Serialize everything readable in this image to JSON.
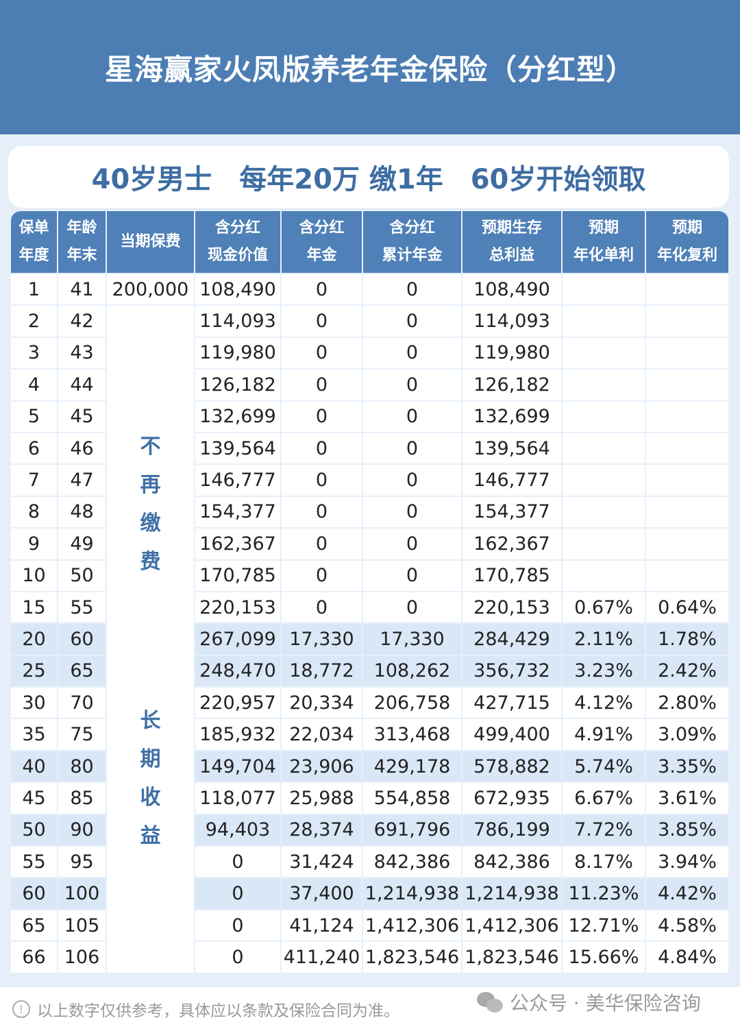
{
  "title": "星海赢家火凤版养老年金保险（分红型）",
  "subtitle": [
    "40岁男士",
    "每年20万 缴1年",
    "60岁开始领取"
  ],
  "headers": [
    [
      "保单",
      "年度"
    ],
    [
      "年龄",
      "年末"
    ],
    [
      "当期保费"
    ],
    [
      "含分红",
      "现金价值"
    ],
    [
      "含分红",
      "年金"
    ],
    [
      "含分红",
      "累计年金"
    ],
    [
      "预期生存",
      "总利益"
    ],
    [
      "预期",
      "年化单利"
    ],
    [
      "预期",
      "年化复利"
    ]
  ],
  "premium_first": "200,000",
  "premium_note_1": "不再缴费",
  "premium_note_2": "长期收益",
  "rows": [
    [
      "1",
      "41",
      "108,490",
      "0",
      "0",
      "108,490",
      "",
      ""
    ],
    [
      "2",
      "42",
      "114,093",
      "0",
      "0",
      "114,093",
      "",
      ""
    ],
    [
      "3",
      "43",
      "119,980",
      "0",
      "0",
      "119,980",
      "",
      ""
    ],
    [
      "4",
      "44",
      "126,182",
      "0",
      "0",
      "126,182",
      "",
      ""
    ],
    [
      "5",
      "45",
      "132,699",
      "0",
      "0",
      "132,699",
      "",
      ""
    ],
    [
      "6",
      "46",
      "139,564",
      "0",
      "0",
      "139,564",
      "",
      ""
    ],
    [
      "7",
      "47",
      "146,777",
      "0",
      "0",
      "146,777",
      "",
      ""
    ],
    [
      "8",
      "48",
      "154,377",
      "0",
      "0",
      "154,377",
      "",
      ""
    ],
    [
      "9",
      "49",
      "162,367",
      "0",
      "0",
      "162,367",
      "",
      ""
    ],
    [
      "10",
      "50",
      "170,785",
      "0",
      "0",
      "170,785",
      "",
      ""
    ],
    [
      "15",
      "55",
      "220,153",
      "0",
      "0",
      "220,153",
      "0.67%",
      "0.64%"
    ],
    [
      "20",
      "60",
      "267,099",
      "17,330",
      "17,330",
      "284,429",
      "2.11%",
      "1.78%"
    ],
    [
      "25",
      "65",
      "248,470",
      "18,772",
      "108,262",
      "356,732",
      "3.23%",
      "2.42%"
    ],
    [
      "30",
      "70",
      "220,957",
      "20,334",
      "206,758",
      "427,715",
      "4.12%",
      "2.80%"
    ],
    [
      "35",
      "75",
      "185,932",
      "22,034",
      "313,468",
      "499,400",
      "4.91%",
      "3.09%"
    ],
    [
      "40",
      "80",
      "149,704",
      "23,906",
      "429,178",
      "578,882",
      "5.74%",
      "3.35%"
    ],
    [
      "45",
      "85",
      "118,077",
      "25,988",
      "554,858",
      "672,935",
      "6.67%",
      "3.61%"
    ],
    [
      "50",
      "90",
      "94,403",
      "28,374",
      "691,796",
      "786,199",
      "7.72%",
      "3.85%"
    ],
    [
      "55",
      "95",
      "0",
      "31,424",
      "842,386",
      "842,386",
      "8.17%",
      "3.94%"
    ],
    [
      "60",
      "100",
      "0",
      "37,400",
      "1,214,938",
      "1,214,938",
      "11.23%",
      "4.42%"
    ],
    [
      "65",
      "105",
      "0",
      "41,124",
      "1,412,306",
      "1,412,306",
      "12.71%",
      "4.58%"
    ],
    [
      "66",
      "106",
      "0",
      "411,240",
      "1,823,546",
      "1,823,546",
      "15.66%",
      "4.84%"
    ]
  ],
  "highlighted_years": [
    "20",
    "25",
    "40",
    "50",
    "60"
  ],
  "footer_note": "以上数字仅供参考，具体应以条款及保险合同为准。",
  "watermark": "公众号 · 美华保险咨询",
  "colors": {
    "banner": "#4c7db3",
    "header": "#4f80b7",
    "highlight": "#d9e7f7",
    "accent_text": "#3e6da2"
  }
}
